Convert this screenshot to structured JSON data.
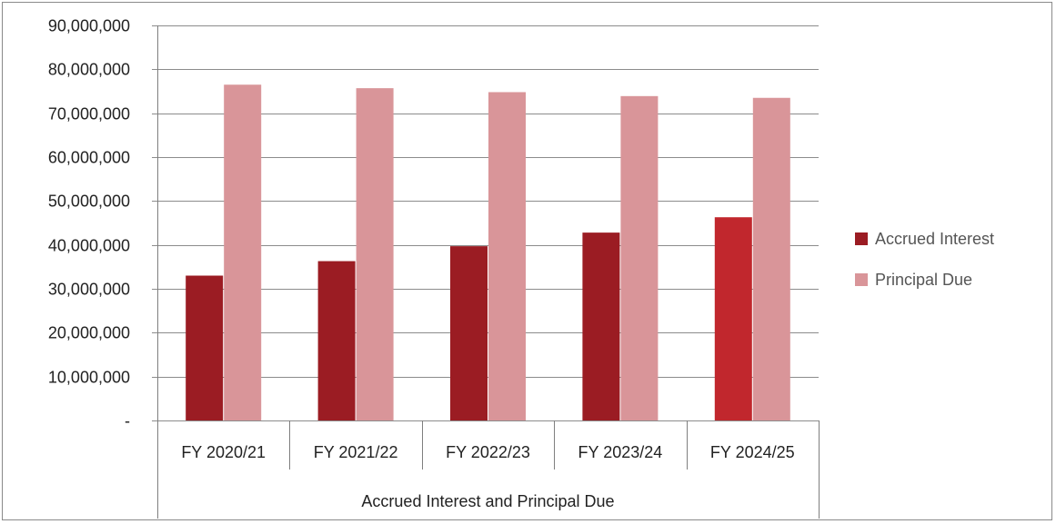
{
  "chart_data": {
    "type": "bar",
    "title": "",
    "xlabel": "",
    "ylabel": "",
    "group_label": "Accrued Interest and Principal Due",
    "categories": [
      "FY 2020/21",
      "FY 2021/22",
      "FY 2022/23",
      "FY 2023/24",
      "FY 2024/25"
    ],
    "series": [
      {
        "name": "Accrued Interest",
        "color": "#9b1c23",
        "point_colors": [
          "#9b1c23",
          "#9b1c23",
          "#9b1c23",
          "#9b1c23",
          "#c1272d"
        ],
        "values": [
          33000000,
          36300000,
          39700000,
          42800000,
          46300000
        ]
      },
      {
        "name": "Principal Due",
        "color": "#d99599",
        "values": [
          76500000,
          75700000,
          74800000,
          73900000,
          73500000
        ]
      }
    ],
    "ylim": [
      0,
      90000000
    ],
    "yticks": [
      0,
      10000000,
      20000000,
      30000000,
      40000000,
      50000000,
      60000000,
      70000000,
      80000000,
      90000000
    ],
    "ytick_labels": [
      "-",
      "10,000,000",
      "20,000,000",
      "30,000,000",
      "40,000,000",
      "50,000,000",
      "60,000,000",
      "70,000,000",
      "80,000,000",
      "90,000,000"
    ],
    "grid": true,
    "legend_position": "right",
    "gridline_color": "#8c8c8c",
    "axis_color": "#7f7f7f"
  }
}
